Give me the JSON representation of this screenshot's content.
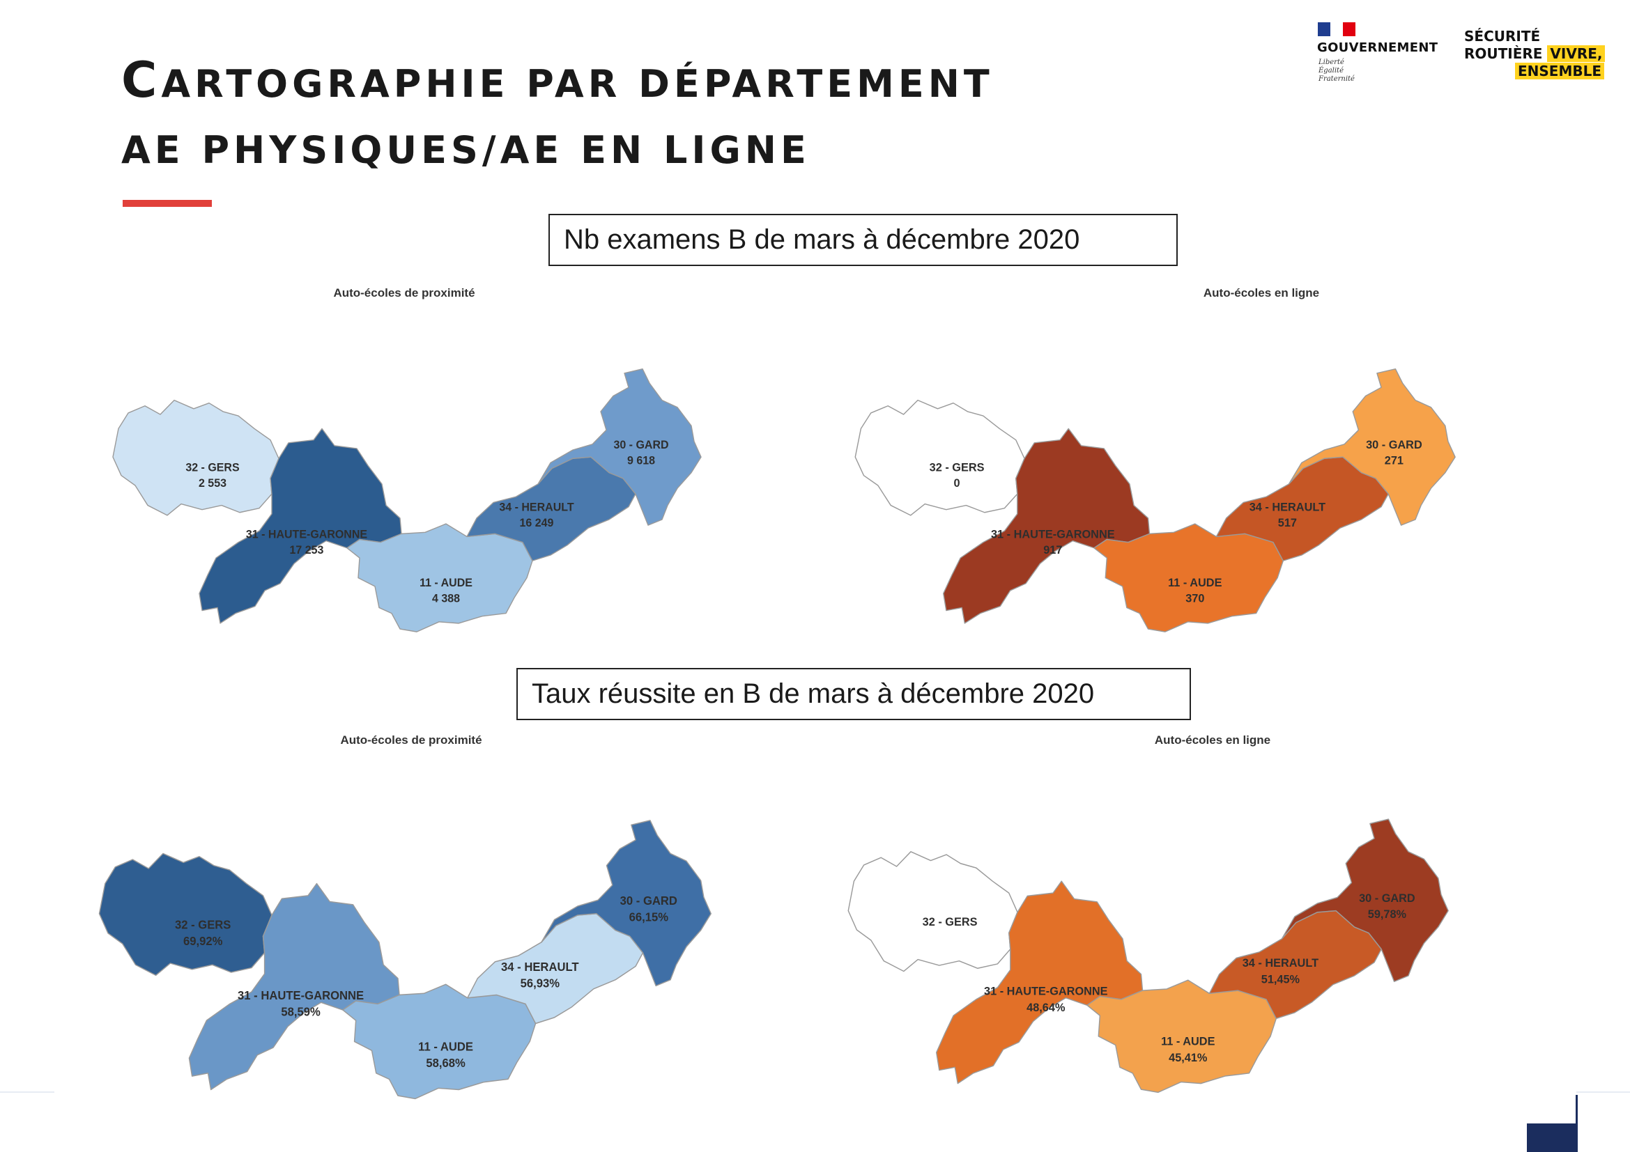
{
  "header": {
    "title_line1_first": "C",
    "title_line1_rest": "ARTOGRAPHIE PAR DÉPARTEMENT",
    "title_line2": "AE PHYSIQUES/AE EN LIGNE"
  },
  "logos": {
    "gov_name": "GOUVERNEMENT",
    "gov_motto_1": "Liberté",
    "gov_motto_2": "Égalité",
    "gov_motto_3": "Fraternité",
    "sr_line1": "SÉCURITÉ",
    "sr_line2": "ROUTIÈRE",
    "sr_line2_hl": "VIVRE,",
    "sr_line3": "ENSEMBLE"
  },
  "sections": {
    "exams_label": "Nb examens B de mars à décembre 2020",
    "rate_label": "Taux réussite en B de mars à décembre 2020"
  },
  "maps": [
    {
      "title": "Auto-écoles de proximité",
      "departments": [
        {
          "name": "32 - GERS",
          "value": "2 553",
          "color": "#cfe3f4"
        },
        {
          "name": "31 - HAUTE-GARONNE",
          "value": "17 253",
          "color": "#2c5c8f"
        },
        {
          "name": "11 - AUDE",
          "value": "4 388",
          "color": "#9fc4e4"
        },
        {
          "name": "34 - HERAULT",
          "value": "16 249",
          "color": "#4a79ad"
        },
        {
          "name": "30 - GARD",
          "value": "9 618",
          "color": "#6f9bcb"
        }
      ]
    },
    {
      "title": "Auto-écoles en ligne",
      "departments": [
        {
          "name": "32 - GERS",
          "value": "0",
          "color": "#ffffff"
        },
        {
          "name": "31 - HAUTE-GARONNE",
          "value": "917",
          "color": "#9c3a22"
        },
        {
          "name": "11 - AUDE",
          "value": "370",
          "color": "#e8742a"
        },
        {
          "name": "34 - HERAULT",
          "value": "517",
          "color": "#c55625"
        },
        {
          "name": "30 - GARD",
          "value": "271",
          "color": "#f6a24a"
        }
      ]
    },
    {
      "title": "Auto-écoles de proximité",
      "departments": [
        {
          "name": "32 - GERS",
          "value": "69,92%",
          "color": "#2f5e91"
        },
        {
          "name": "31 - HAUTE-GARONNE",
          "value": "58,59%",
          "color": "#6a97c7"
        },
        {
          "name": "11 - AUDE",
          "value": "58,68%",
          "color": "#8fb8de"
        },
        {
          "name": "34 - HERAULT",
          "value": "56,93%",
          "color": "#c2dcf1"
        },
        {
          "name": "30 - GARD",
          "value": "66,15%",
          "color": "#3f6fa6"
        }
      ]
    },
    {
      "title": "Auto-écoles en ligne",
      "departments": [
        {
          "name": "32 - GERS",
          "value": "",
          "color": "#ffffff"
        },
        {
          "name": "31 - HAUTE-GARONNE",
          "value": "48,64%",
          "color": "#e27028"
        },
        {
          "name": "11 - AUDE",
          "value": "45,41%",
          "color": "#f3a24d"
        },
        {
          "name": "34 - HERAULT",
          "value": "51,45%",
          "color": "#c85a26"
        },
        {
          "name": "30 - GARD",
          "value": "59,78%",
          "color": "#9d3c22"
        }
      ]
    }
  ]
}
